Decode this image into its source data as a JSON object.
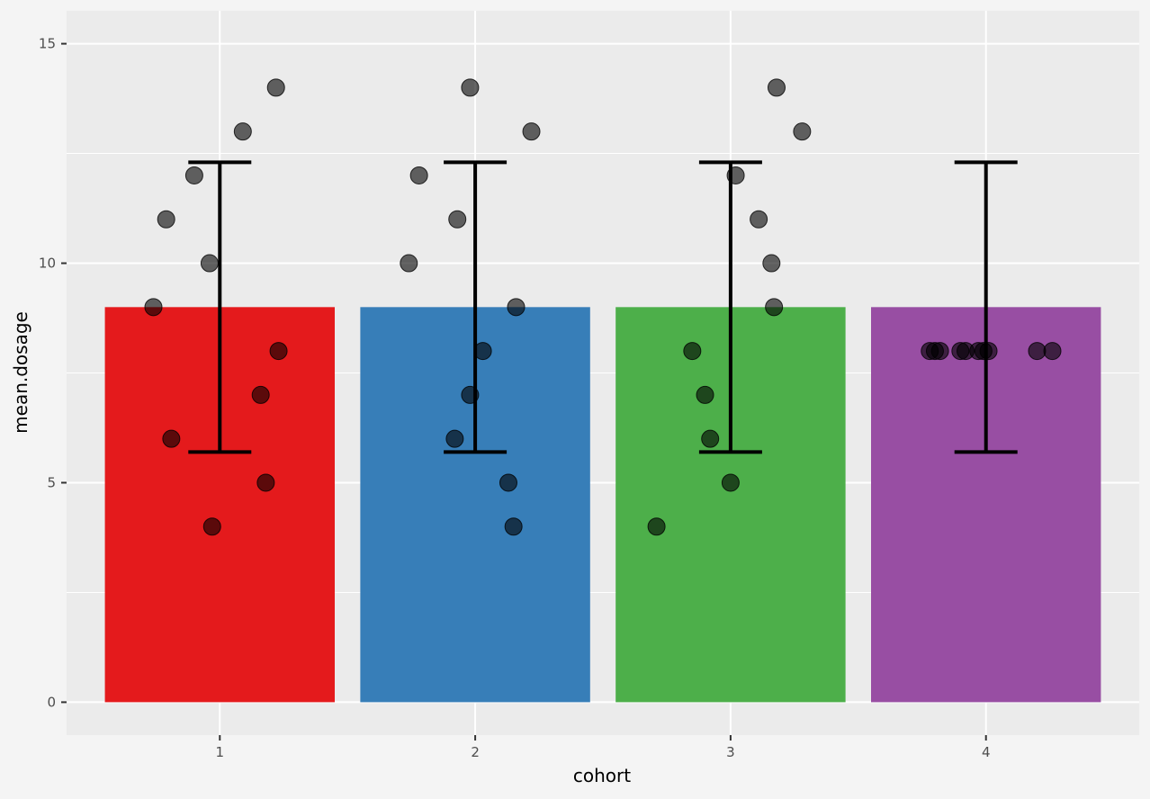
{
  "chart_data": {
    "type": "bar",
    "title": "",
    "xlabel": "cohort",
    "ylabel": "mean.dosage",
    "categories": [
      "1",
      "2",
      "3",
      "4"
    ],
    "values": [
      9,
      9,
      9,
      9
    ],
    "colors": [
      "#e41a1c",
      "#377eb8",
      "#4daf4a",
      "#984ea3"
    ],
    "error_bars": [
      {
        "low": 5.7,
        "high": 12.3
      },
      {
        "low": 5.7,
        "high": 12.3
      },
      {
        "low": 5.7,
        "high": 12.3
      },
      {
        "low": 5.7,
        "high": 12.3
      }
    ],
    "points": [
      {
        "cohort": 1,
        "jitter": -0.26,
        "y": 9
      },
      {
        "cohort": 1,
        "jitter": -0.21,
        "y": 11
      },
      {
        "cohort": 1,
        "jitter": -0.19,
        "y": 6
      },
      {
        "cohort": 1,
        "jitter": -0.1,
        "y": 12
      },
      {
        "cohort": 1,
        "jitter": -0.04,
        "y": 10
      },
      {
        "cohort": 1,
        "jitter": -0.03,
        "y": 4
      },
      {
        "cohort": 1,
        "jitter": 0.09,
        "y": 13
      },
      {
        "cohort": 1,
        "jitter": 0.16,
        "y": 7
      },
      {
        "cohort": 1,
        "jitter": 0.18,
        "y": 5
      },
      {
        "cohort": 1,
        "jitter": 0.22,
        "y": 14
      },
      {
        "cohort": 1,
        "jitter": 0.23,
        "y": 8
      },
      {
        "cohort": 2,
        "jitter": -0.26,
        "y": 10
      },
      {
        "cohort": 2,
        "jitter": -0.22,
        "y": 12
      },
      {
        "cohort": 2,
        "jitter": -0.08,
        "y": 6
      },
      {
        "cohort": 2,
        "jitter": -0.07,
        "y": 11
      },
      {
        "cohort": 2,
        "jitter": -0.02,
        "y": 14
      },
      {
        "cohort": 2,
        "jitter": -0.02,
        "y": 7
      },
      {
        "cohort": 2,
        "jitter": 0.03,
        "y": 8
      },
      {
        "cohort": 2,
        "jitter": 0.13,
        "y": 5
      },
      {
        "cohort": 2,
        "jitter": 0.15,
        "y": 4
      },
      {
        "cohort": 2,
        "jitter": 0.16,
        "y": 9
      },
      {
        "cohort": 2,
        "jitter": 0.22,
        "y": 13
      },
      {
        "cohort": 3,
        "jitter": -0.29,
        "y": 4
      },
      {
        "cohort": 3,
        "jitter": -0.15,
        "y": 8
      },
      {
        "cohort": 3,
        "jitter": -0.1,
        "y": 7
      },
      {
        "cohort": 3,
        "jitter": -0.08,
        "y": 6
      },
      {
        "cohort": 3,
        "jitter": 0.0,
        "y": 5
      },
      {
        "cohort": 3,
        "jitter": 0.02,
        "y": 12
      },
      {
        "cohort": 3,
        "jitter": 0.11,
        "y": 11
      },
      {
        "cohort": 3,
        "jitter": 0.16,
        "y": 10
      },
      {
        "cohort": 3,
        "jitter": 0.17,
        "y": 9
      },
      {
        "cohort": 3,
        "jitter": 0.18,
        "y": 14
      },
      {
        "cohort": 3,
        "jitter": 0.28,
        "y": 13
      },
      {
        "cohort": 4,
        "jitter": -0.22,
        "y": 8
      },
      {
        "cohort": 4,
        "jitter": -0.2,
        "y": 8
      },
      {
        "cohort": 4,
        "jitter": -0.18,
        "y": 8
      },
      {
        "cohort": 4,
        "jitter": -0.1,
        "y": 8
      },
      {
        "cohort": 4,
        "jitter": -0.08,
        "y": 8
      },
      {
        "cohort": 4,
        "jitter": -0.03,
        "y": 8
      },
      {
        "cohort": 4,
        "jitter": -0.01,
        "y": 8
      },
      {
        "cohort": 4,
        "jitter": 0.01,
        "y": 8
      },
      {
        "cohort": 4,
        "jitter": 0.2,
        "y": 8
      },
      {
        "cohort": 4,
        "jitter": 0.26,
        "y": 8
      }
    ],
    "xlim": [
      0.4,
      4.6
    ],
    "ylim": [
      -0.75,
      15.75
    ],
    "y_major_ticks": [
      0,
      5,
      10,
      15
    ],
    "y_minor_ticks": [
      2.5,
      7.5,
      12.5
    ],
    "y_tick_labels": [
      "0",
      "5",
      "10",
      "15"
    ],
    "bar_width": 0.9,
    "grid": true,
    "legend": "none"
  }
}
